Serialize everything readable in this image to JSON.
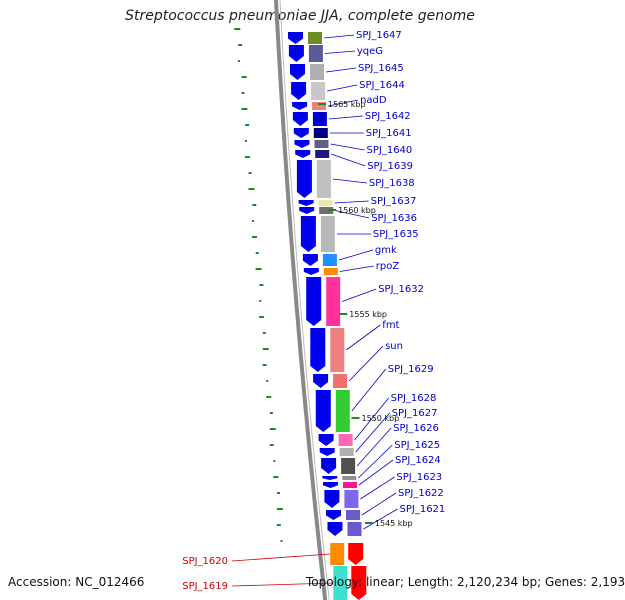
{
  "title": "Streptococcus pneumoniae JJA, complete genome",
  "accession_label": "Accession: NC_012466",
  "topology_label": "Topology: linear; Length: 2,120,234 bp; Genes: 2,193",
  "colors": {
    "cds": "#0000ee",
    "rna": "#ff0000",
    "backbone": "#888888",
    "label_blue": "#0000cc",
    "label_red": "#cc0000",
    "gc_dash": "#228822"
  },
  "kbp_marks": [
    "1565 kbp",
    "1560 kbp",
    "1555 kbp",
    "1550 kbp",
    "1545 kbp"
  ],
  "genes": [
    {
      "name": "SPJ_1647",
      "color": "#0000cc",
      "cog_color": "#6b8e23"
    },
    {
      "name": "yqeG",
      "color": "#0000cc",
      "cog_color": "#5a5a9a"
    },
    {
      "name": "SPJ_1645",
      "color": "#0000cc",
      "cog_color": "#b0b0b0"
    },
    {
      "name": "SPJ_1644",
      "color": "#0000cc",
      "cog_color": "#c8c8c8"
    },
    {
      "name": "nadD",
      "color": "#0000cc",
      "cog_color": "#f08080"
    },
    {
      "name": "SPJ_1642",
      "color": "#0000cc",
      "cog_color": "#0000cc"
    },
    {
      "name": "SPJ_1641",
      "color": "#0000cc",
      "cog_color": "#000080"
    },
    {
      "name": "SPJ_1640",
      "color": "#0000cc",
      "cog_color": "#606080"
    },
    {
      "name": "SPJ_1639",
      "color": "#0000cc",
      "cog_color": "#1a1a7a"
    },
    {
      "name": "SPJ_1638",
      "color": "#0000cc",
      "cog_color": "#c0c0c0"
    },
    {
      "name": "SPJ_1637",
      "color": "#0000cc",
      "cog_color": "#eee8aa"
    },
    {
      "name": "SPJ_1636",
      "color": "#0000cc",
      "cog_color": "#707070"
    },
    {
      "name": "SPJ_1635",
      "color": "#0000cc",
      "cog_color": "#b8b8b8"
    },
    {
      "name": "gmk",
      "color": "#0000cc",
      "cog_color": "#1e90ff"
    },
    {
      "name": "rpoZ",
      "color": "#0000cc",
      "cog_color": "#ff8c00"
    },
    {
      "name": "SPJ_1632",
      "color": "#0000cc",
      "cog_color": "#ff3399"
    },
    {
      "name": "fmt",
      "color": "#0000cc",
      "cog_color": "#f08080"
    },
    {
      "name": "sun",
      "color": "#0000cc",
      "cog_color": "#f07070"
    },
    {
      "name": "SPJ_1629",
      "color": "#0000cc",
      "cog_color": "#33cc33"
    },
    {
      "name": "SPJ_1628",
      "color": "#0000cc",
      "cog_color": "#ff69b4"
    },
    {
      "name": "SPJ_1627",
      "color": "#0000cc",
      "cog_color": "#b0b0b0"
    },
    {
      "name": "SPJ_1626",
      "color": "#0000cc",
      "cog_color": "#505050"
    },
    {
      "name": "SPJ_1625",
      "color": "#0000cc",
      "cog_color": "#909090"
    },
    {
      "name": "SPJ_1624",
      "color": "#0000cc",
      "cog_color": "#ff1493"
    },
    {
      "name": "SPJ_1623",
      "color": "#0000cc",
      "cog_color": "#7b68ee"
    },
    {
      "name": "SPJ_1622",
      "color": "#0000cc",
      "cog_color": "#6a5acd"
    },
    {
      "name": "SPJ_1621",
      "color": "#0000cc",
      "cog_color": "#6a5acd"
    },
    {
      "name": "SPJ_1620",
      "color": "#cc0000",
      "cog_color": "#ff8c00"
    },
    {
      "name": "SPJ_1619",
      "color": "#cc0000",
      "cog_color": "#40e0d0"
    }
  ]
}
